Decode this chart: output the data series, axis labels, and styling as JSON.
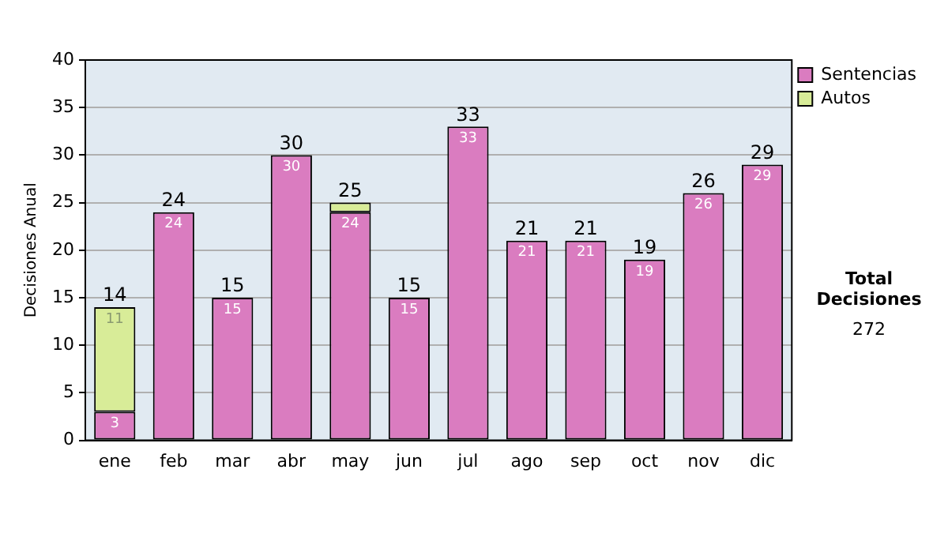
{
  "chart_data": {
    "type": "bar",
    "stacked": true,
    "ylabel": "Decisiones Anual",
    "categories": [
      "ene",
      "feb",
      "mar",
      "abr",
      "may",
      "jun",
      "jul",
      "ago",
      "sep",
      "oct",
      "nov",
      "dic"
    ],
    "series": [
      {
        "name": "Sentencias",
        "color": "#da7cc0",
        "values": [
          3,
          24,
          15,
          30,
          24,
          15,
          33,
          21,
          21,
          19,
          26,
          29
        ],
        "value_labels": [
          "3",
          "24",
          "15",
          "30",
          "24",
          "15",
          "33",
          "21",
          "21",
          "19",
          "26",
          "29"
        ]
      },
      {
        "name": "Autos",
        "color": "#d8ec98",
        "values": [
          11,
          null,
          null,
          null,
          1,
          null,
          null,
          null,
          null,
          null,
          null,
          null
        ],
        "value_labels": [
          "11",
          null,
          null,
          null,
          null,
          null,
          null,
          null,
          null,
          null,
          null,
          null
        ]
      }
    ],
    "totals": [
      "14",
      "24",
      "15",
      "30",
      "25",
      "15",
      "33",
      "21",
      "21",
      "19",
      "26",
      "29"
    ],
    "ylim": [
      0,
      40
    ],
    "yticks": [
      0,
      5,
      10,
      15,
      20,
      25,
      30,
      35,
      40
    ],
    "grid": "y",
    "legend": "right",
    "annotations": [
      "Total Decisiones",
      "272"
    ]
  }
}
